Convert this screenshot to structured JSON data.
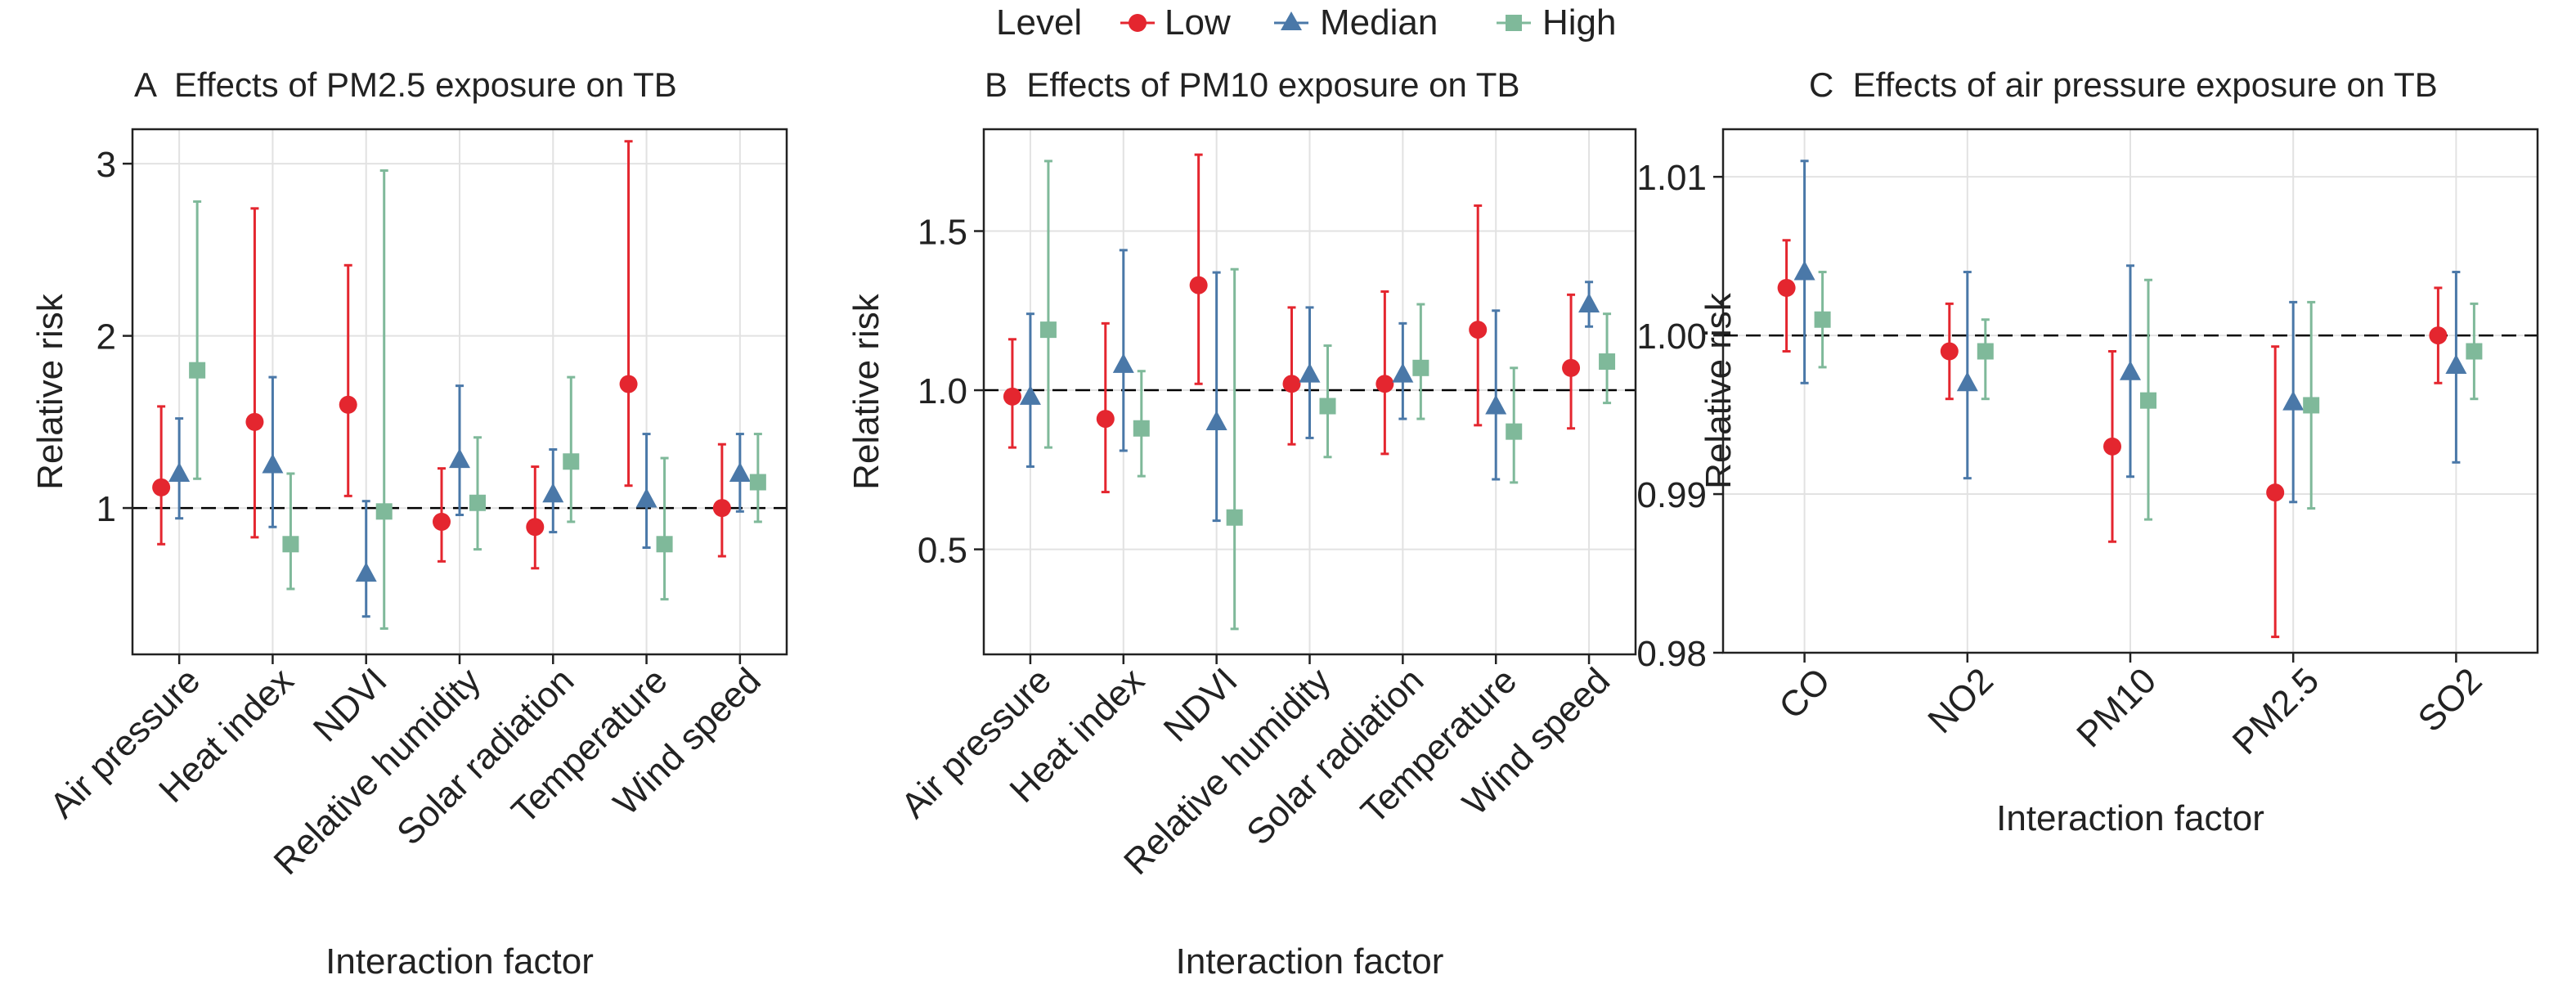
{
  "legend": {
    "title": "Level",
    "entries": [
      {
        "label": "Low",
        "color": "#e4262f",
        "shape": "circle"
      },
      {
        "label": "Median",
        "color": "#4a78a8",
        "shape": "triangle"
      },
      {
        "label": "High",
        "color": "#7fb99a",
        "shape": "square"
      }
    ]
  },
  "chart_data": [
    {
      "type": "errorbar",
      "title": "A  Effects of PM2.5 exposure on TB",
      "xlabel": "Interaction factor",
      "ylabel": "Relative risk",
      "ylim": [
        0.15,
        3.2
      ],
      "yticks": [
        1,
        2,
        3
      ],
      "ytick_labels": [
        "1",
        "2",
        "3"
      ],
      "reference_line": 1,
      "grid": true,
      "categories": [
        "Air pressure",
        "Heat index",
        "NDVI",
        "Relative humidity",
        "Solar radiation",
        "Temperature",
        "Wind speed"
      ],
      "series": [
        {
          "name": "Low",
          "values": [
            1.12,
            1.5,
            1.6,
            0.92,
            0.89,
            1.72,
            1.0
          ],
          "lower": [
            0.79,
            0.83,
            1.07,
            0.69,
            0.65,
            1.13,
            0.72
          ],
          "upper": [
            1.59,
            2.74,
            2.41,
            1.23,
            1.24,
            3.13,
            1.37
          ]
        },
        {
          "name": "Median",
          "values": [
            1.2,
            1.25,
            0.62,
            1.28,
            1.08,
            1.05,
            1.2
          ],
          "lower": [
            0.94,
            0.89,
            0.37,
            0.96,
            0.86,
            0.77,
            0.98
          ],
          "upper": [
            1.52,
            1.76,
            1.04,
            1.71,
            1.34,
            1.43,
            1.43
          ]
        },
        {
          "name": "High",
          "values": [
            1.8,
            0.79,
            0.98,
            1.03,
            1.27,
            0.79,
            1.15
          ],
          "lower": [
            1.17,
            0.53,
            0.3,
            0.76,
            0.92,
            0.47,
            0.92
          ],
          "upper": [
            2.78,
            1.2,
            2.96,
            1.41,
            1.76,
            1.29,
            1.43
          ]
        }
      ]
    },
    {
      "type": "errorbar",
      "title": "B  Effects of PM10 exposure on TB",
      "xlabel": "Interaction factor",
      "ylabel": "Relative risk",
      "ylim": [
        0.17,
        1.82
      ],
      "yticks": [
        0.5,
        1.0,
        1.5
      ],
      "ytick_labels": [
        "0.5",
        "1.0",
        "1.5"
      ],
      "reference_line": 1,
      "grid": true,
      "categories": [
        "Air pressure",
        "Heat index",
        "NDVI",
        "Relative humidity",
        "Solar radiation",
        "Temperature",
        "Wind speed"
      ],
      "series": [
        {
          "name": "Low",
          "values": [
            0.98,
            0.91,
            1.33,
            1.02,
            1.02,
            1.19,
            1.07
          ],
          "lower": [
            0.82,
            0.68,
            1.02,
            0.83,
            0.8,
            0.89,
            0.88
          ],
          "upper": [
            1.16,
            1.21,
            1.74,
            1.26,
            1.31,
            1.58,
            1.3
          ]
        },
        {
          "name": "Median",
          "values": [
            0.98,
            1.08,
            0.9,
            1.05,
            1.05,
            0.95,
            1.27
          ],
          "lower": [
            0.76,
            0.81,
            0.59,
            0.85,
            0.91,
            0.72,
            1.2
          ],
          "upper": [
            1.24,
            1.44,
            1.37,
            1.26,
            1.21,
            1.25,
            1.34
          ]
        },
        {
          "name": "High",
          "values": [
            1.19,
            0.88,
            0.6,
            0.95,
            1.07,
            0.87,
            1.09
          ],
          "lower": [
            0.82,
            0.73,
            0.25,
            0.79,
            0.91,
            0.71,
            0.96
          ],
          "upper": [
            1.72,
            1.06,
            1.38,
            1.14,
            1.27,
            1.07,
            1.24
          ]
        }
      ]
    },
    {
      "type": "errorbar",
      "title": "C  Effects of air pressure exposure on TB",
      "xlabel": "Interaction factor",
      "ylabel": "Relative risk",
      "ylim": [
        0.98,
        1.013
      ],
      "yticks": [
        0.98,
        0.99,
        1.0,
        1.01
      ],
      "ytick_labels": [
        "0.98",
        "0.99",
        "1.00",
        "1.01"
      ],
      "reference_line": 1,
      "grid": true,
      "categories": [
        "CO",
        "NO2",
        "PM10",
        "PM2.5",
        "SO2"
      ],
      "series": [
        {
          "name": "Low",
          "values": [
            1.003,
            0.999,
            0.993,
            0.9901,
            1.0
          ],
          "lower": [
            0.999,
            0.996,
            0.987,
            0.981,
            0.997
          ],
          "upper": [
            1.006,
            1.002,
            0.999,
            0.9993,
            1.003
          ]
        },
        {
          "name": "Median",
          "values": [
            1.004,
            0.997,
            0.9977,
            0.9958,
            0.9981
          ],
          "lower": [
            0.997,
            0.991,
            0.9911,
            0.9895,
            0.992
          ],
          "upper": [
            1.011,
            1.004,
            1.0044,
            1.0021,
            1.004
          ]
        },
        {
          "name": "High",
          "values": [
            1.001,
            0.999,
            0.9959,
            0.9956,
            0.999
          ],
          "lower": [
            0.998,
            0.996,
            0.9884,
            0.9891,
            0.996
          ],
          "upper": [
            1.004,
            1.001,
            1.0035,
            1.0021,
            1.002
          ]
        }
      ]
    }
  ]
}
